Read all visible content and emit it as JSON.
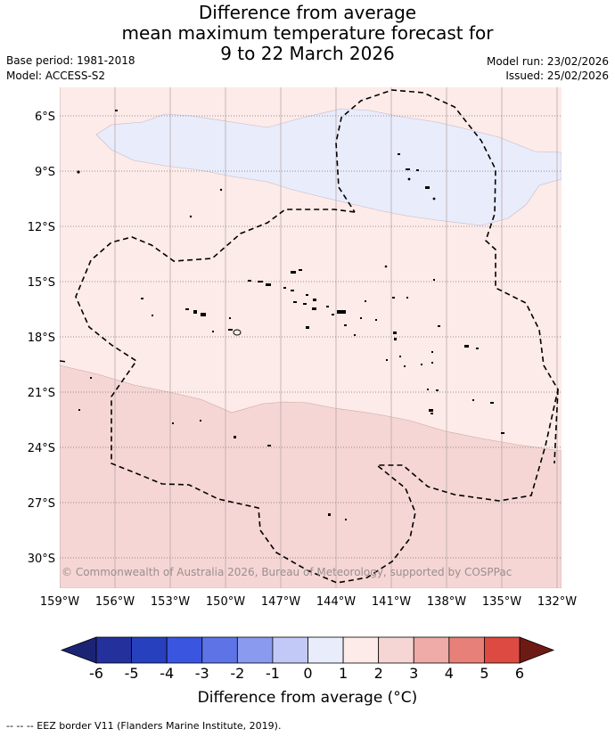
{
  "title": {
    "line1": "Difference from average",
    "line2": "mean maximum temperature forecast for",
    "line3": "9 to 22 March 2026"
  },
  "meta": {
    "base_period": "Base period: 1981-2018",
    "model": "Model: ACCESS-S2",
    "model_run": "Model run: 23/02/2026",
    "issued": "Issued: 25/02/2026"
  },
  "map": {
    "lat_labels": [
      "6°S",
      "9°S",
      "12°S",
      "15°S",
      "18°S",
      "21°S",
      "24°S",
      "27°S",
      "30°S"
    ],
    "lon_labels": [
      "159°W",
      "156°W",
      "153°W",
      "150°W",
      "147°W",
      "144°W",
      "141°W",
      "138°W",
      "135°W",
      "132°W"
    ],
    "credit": "© Commonwealth of Australia 2026, Bureau of Meteorology, supported by COSPPac",
    "colors": {
      "band_neg1_0": "#e8ecfb",
      "band_0_1": "#fcebe8",
      "band_1_2": "#f5d6d4",
      "land": "#000000",
      "eez": "#000000"
    }
  },
  "colorbar": {
    "labels": [
      "-6",
      "-5",
      "-4",
      "-3",
      "-2",
      "-1",
      "0",
      "1",
      "2",
      "3",
      "4",
      "5",
      "6"
    ],
    "colors": [
      "#24309c",
      "#2740bd",
      "#3a55e0",
      "#5e74e6",
      "#8a9aee",
      "#c3c9f7",
      "#e8ecfb",
      "#fcebe8",
      "#f5d6d4",
      "#eeaba7",
      "#e78079",
      "#dd4a41",
      "#af2a22",
      "#6e1a14"
    ],
    "extend_low": "#1b2474",
    "extend_high": "#6e1a14",
    "title": "Difference from average (°C)"
  },
  "footnote": "-- -- -- EEZ border V11 (Flanders Marine Institute, 2019)."
}
